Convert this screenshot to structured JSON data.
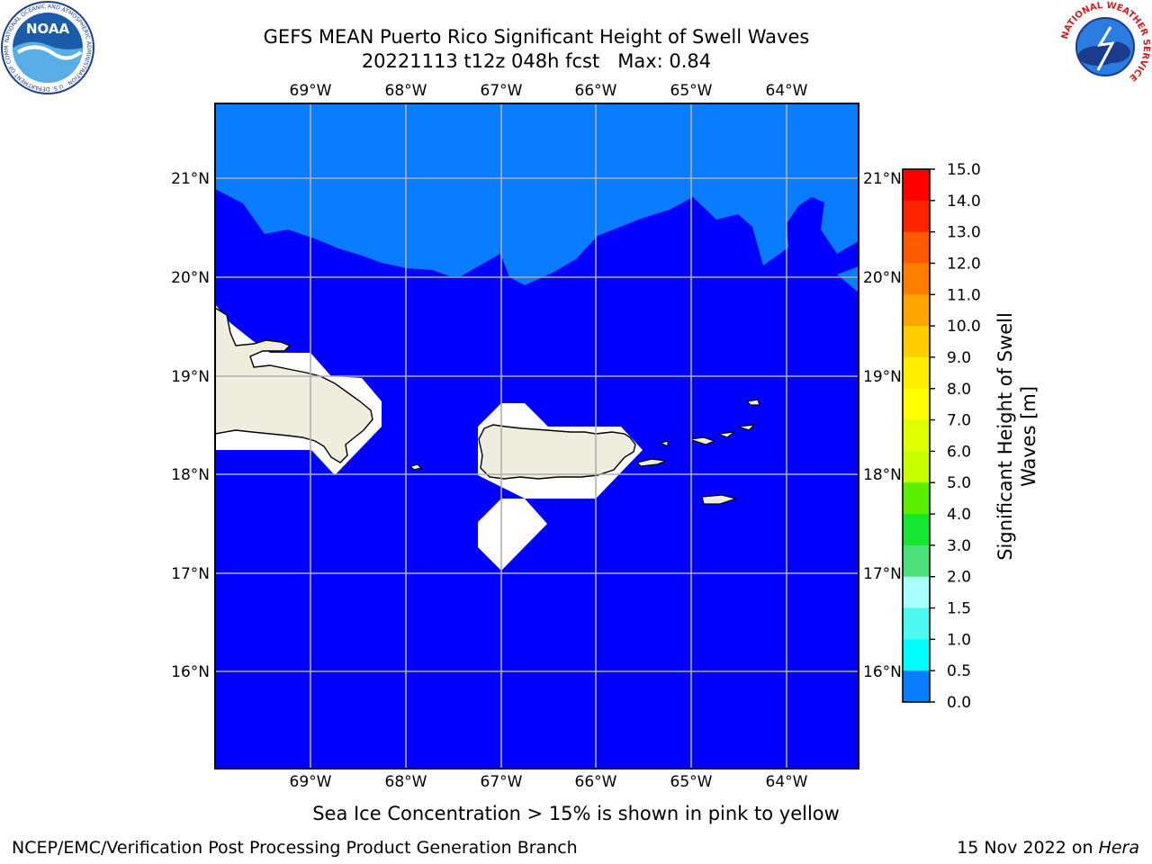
{
  "title": {
    "line1": "GEFS MEAN Puerto Rico Significant Height of Swell Waves",
    "line2": "20221113 t12z 048h fcst   Max: 0.84"
  },
  "map": {
    "lon_ticks": [
      "69°W",
      "68°W",
      "67°W",
      "66°W",
      "65°W",
      "64°W"
    ],
    "lat_ticks": [
      "21°N",
      "20°N",
      "19°N",
      "18°N",
      "17°N",
      "16°N"
    ],
    "colors": {
      "ocean_low": "#0000ff",
      "ocean_mid": "#0a7cff",
      "land": "#eeedde",
      "no_data": "#ffffff",
      "grid": "#b0b0b0"
    }
  },
  "colorbar": {
    "label": "Significant Height of Swell Waves [m]",
    "label_line1": "Significant Height of Swell",
    "label_line2": "Waves [m]",
    "ticks": [
      "15.0",
      "14.0",
      "13.0",
      "12.0",
      "11.0",
      "10.0",
      "9.0",
      "8.0",
      "7.0",
      "6.0",
      "5.0",
      "4.0",
      "3.0",
      "2.0",
      "1.5",
      "1.0",
      "0.5",
      "0.0"
    ],
    "colors": [
      "#ff0000",
      "#ff2400",
      "#ff5a00",
      "#ff7e00",
      "#ffa400",
      "#ffcc00",
      "#ffee00",
      "#fdff00",
      "#e0ff00",
      "#c8ff00",
      "#5aee00",
      "#14e632",
      "#4ce07a",
      "#aaffff",
      "#4cfaf0",
      "#00ffff",
      "#0a7cff",
      "#0000ff"
    ]
  },
  "note": "Sea Ice Concentration > 15% is shown in pink to yellow",
  "footer": {
    "left": "NCEP/EMC/Verification Post Processing Product Generation Branch",
    "date": "15 Nov 2022 on",
    "host": "Hera"
  },
  "logos": {
    "noaa": "NOAA",
    "noaa_ring": "NATIONAL OCEANIC AND ATMOSPHERIC ADMINISTRATION · U.S. DEPARTMENT OF COMMERCE",
    "nws_ring": "NATIONAL WEATHER SERVICE"
  }
}
